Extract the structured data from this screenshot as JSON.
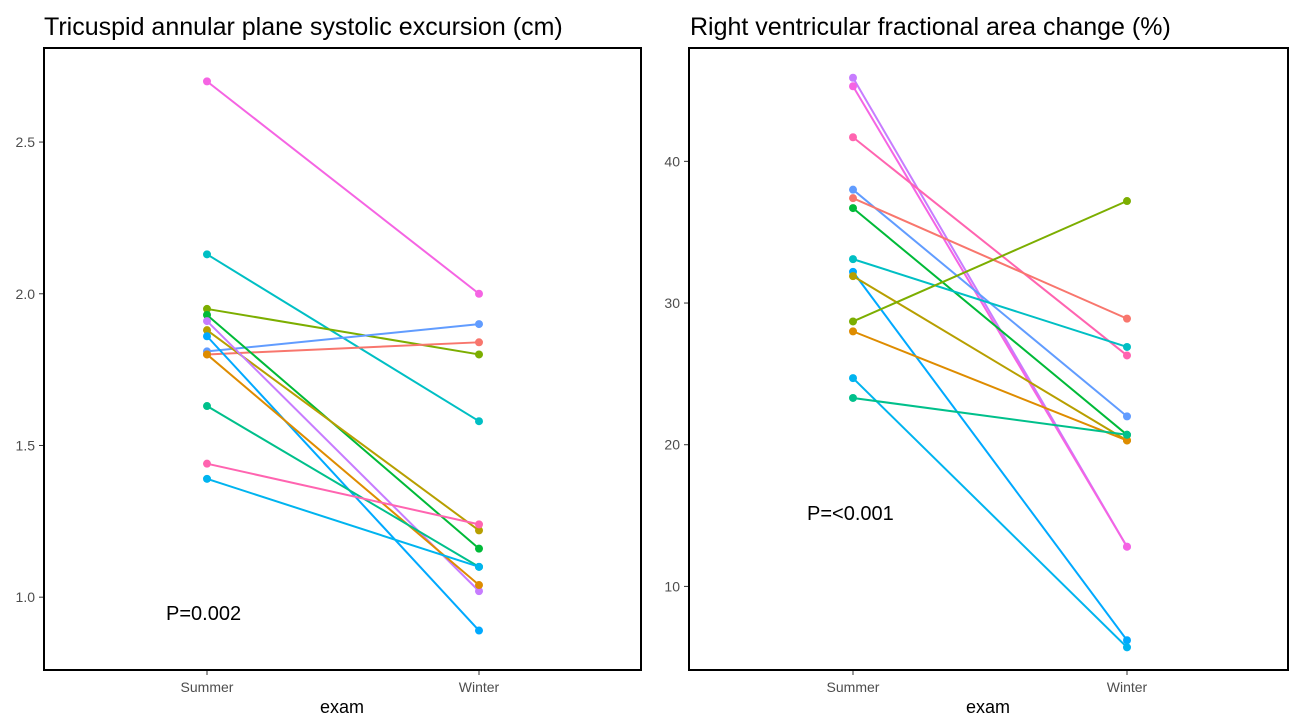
{
  "chart_data": [
    {
      "type": "line",
      "title": "Tricuspid annular plane systolic excursion (cm)",
      "xlabel": "exam",
      "ylabel": "",
      "categories": [
        "Summer",
        "Winter"
      ],
      "ylim": [
        0.76,
        2.81
      ],
      "yticks": [
        1.0,
        1.5,
        2.0,
        2.5
      ],
      "ytick_labels": [
        "1.0",
        "1.5",
        "2.0",
        "2.5"
      ],
      "grid": false,
      "annotation": "P=0.002",
      "series": [
        {
          "values": [
            2.7,
            2.0
          ],
          "color": "#F564E3"
        },
        {
          "values": [
            2.13,
            1.58
          ],
          "color": "#00BFC4"
        },
        {
          "values": [
            1.95,
            1.8
          ],
          "color": "#7CAE00"
        },
        {
          "values": [
            1.81,
            1.9
          ],
          "color": "#619CFF"
        },
        {
          "values": [
            1.8,
            1.84
          ],
          "color": "#F8766D"
        },
        {
          "values": [
            1.93,
            1.16
          ],
          "color": "#00BA38"
        },
        {
          "values": [
            1.88,
            1.22
          ],
          "color": "#B79F00"
        },
        {
          "values": [
            1.91,
            1.02
          ],
          "color": "#C77CFF"
        },
        {
          "values": [
            1.86,
            0.89
          ],
          "color": "#00A9FF"
        },
        {
          "values": [
            1.8,
            1.04
          ],
          "color": "#DE8C00"
        },
        {
          "values": [
            1.63,
            1.1
          ],
          "color": "#00C08B"
        },
        {
          "values": [
            1.44,
            1.24
          ],
          "color": "#FF64B0"
        },
        {
          "values": [
            1.39,
            1.1
          ],
          "color": "#00B4EF"
        }
      ]
    },
    {
      "type": "line",
      "title": "Right ventricular fractional area change (%)",
      "xlabel": "exam",
      "ylabel": "",
      "categories": [
        "Summer",
        "Winter"
      ],
      "ylim": [
        4.1,
        48.0
      ],
      "yticks": [
        10,
        20,
        30,
        40
      ],
      "ytick_labels": [
        "10",
        "20",
        "30",
        "40"
      ],
      "grid": false,
      "annotation": "P=<0.001",
      "series": [
        {
          "values": [
            45.9,
            12.8
          ],
          "color": "#C77CFF"
        },
        {
          "values": [
            45.3,
            12.8
          ],
          "color": "#F564E3"
        },
        {
          "values": [
            41.7,
            26.3
          ],
          "color": "#FF64B0"
        },
        {
          "values": [
            38.0,
            22.0
          ],
          "color": "#619CFF"
        },
        {
          "values": [
            37.4,
            28.9
          ],
          "color": "#F8766D"
        },
        {
          "values": [
            36.7,
            20.7
          ],
          "color": "#00BA38"
        },
        {
          "values": [
            33.1,
            26.9
          ],
          "color": "#00BFC4"
        },
        {
          "values": [
            32.2,
            6.2
          ],
          "color": "#00A9FF"
        },
        {
          "values": [
            31.9,
            20.3
          ],
          "color": "#B79F00"
        },
        {
          "values": [
            28.7,
            37.2
          ],
          "color": "#7CAE00"
        },
        {
          "values": [
            28.0,
            20.3
          ],
          "color": "#DE8C00"
        },
        {
          "values": [
            24.7,
            5.7
          ],
          "color": "#00B4EF"
        },
        {
          "values": [
            23.3,
            20.7
          ],
          "color": "#00C08B"
        }
      ]
    }
  ]
}
